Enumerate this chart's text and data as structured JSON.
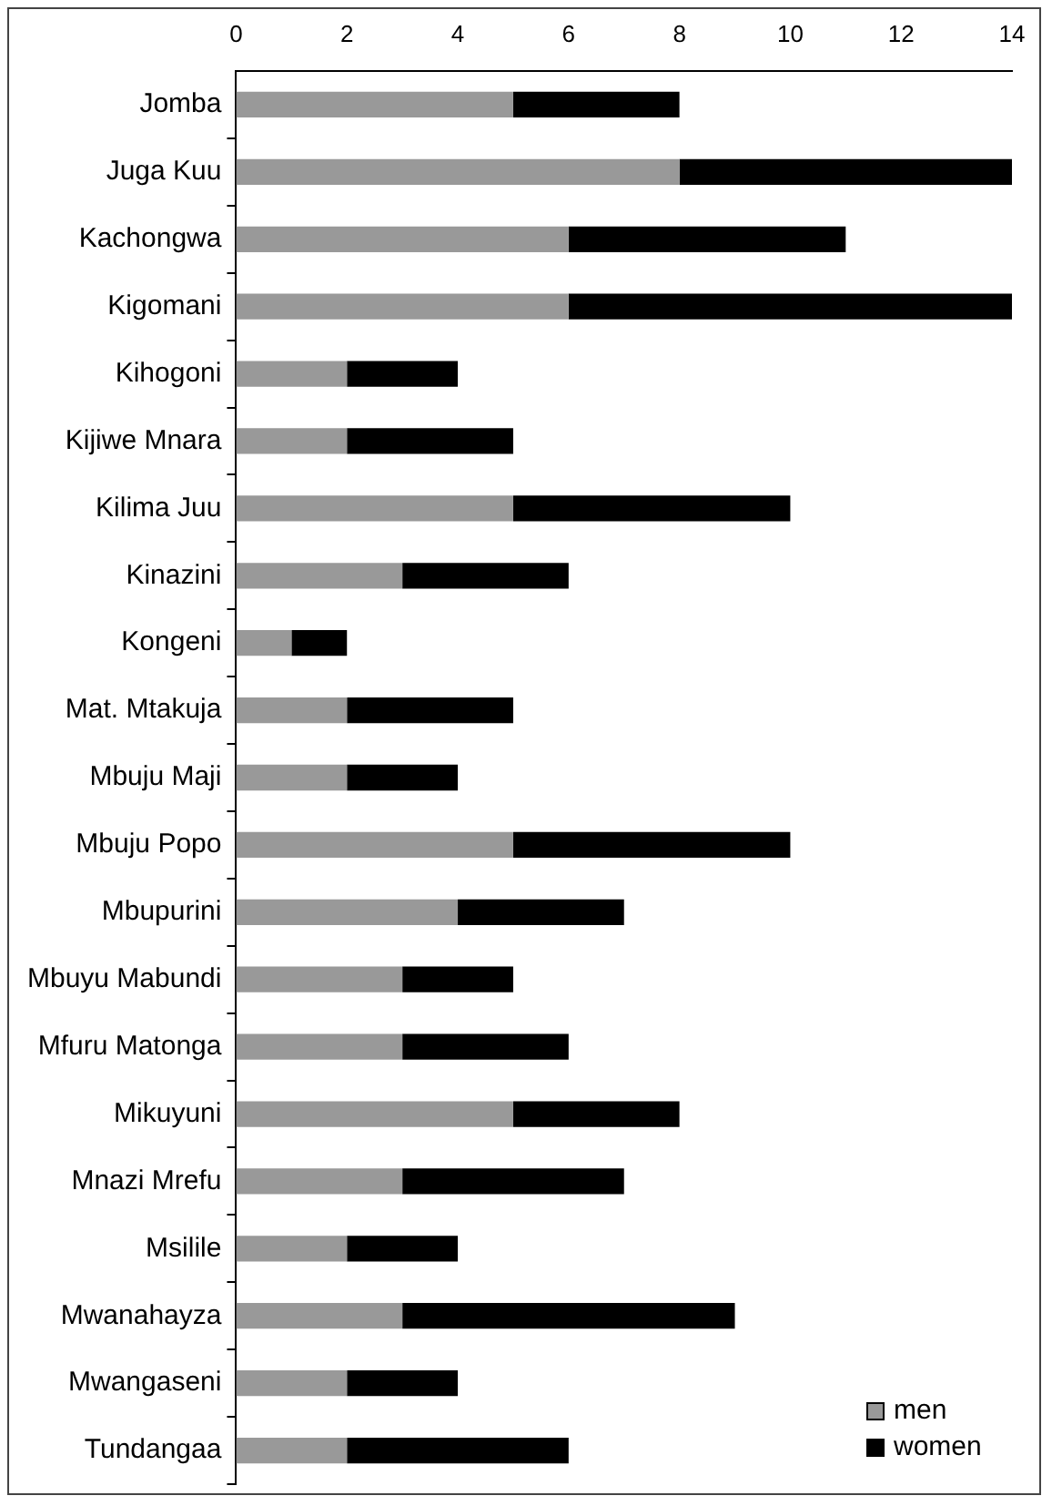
{
  "chart_data": {
    "type": "bar",
    "orientation": "horizontal",
    "stacked": true,
    "categories": [
      "Jomba",
      "Juga Kuu",
      "Kachongwa",
      "Kigomani",
      "Kihogoni",
      "Kijiwe Mnara",
      "Kilima Juu",
      "Kinazini",
      "Kongeni",
      "Mat. Mtakuja",
      "Mbuju Maji",
      "Mbuju Popo",
      "Mbupurini",
      "Mbuyu Mabundi",
      "Mfuru Matonga",
      "Mikuyuni",
      "Mnazi Mrefu",
      "Msilile",
      "Mwanahayza",
      "Mwangaseni",
      "Tundangaa"
    ],
    "series": [
      {
        "name": "men",
        "color": "#999999",
        "values": [
          5,
          8,
          6,
          6,
          2,
          2,
          5,
          3,
          1,
          2,
          2,
          5,
          4,
          3,
          3,
          5,
          3,
          2,
          3,
          2,
          2
        ]
      },
      {
        "name": "women",
        "color": "#000000",
        "values": [
          3,
          6,
          5,
          8,
          2,
          3,
          5,
          3,
          1,
          3,
          2,
          5,
          3,
          2,
          3,
          3,
          4,
          2,
          6,
          2,
          4
        ]
      }
    ],
    "xlim": [
      0,
      14
    ],
    "xticks": [
      0,
      2,
      4,
      6,
      8,
      10,
      12,
      14
    ],
    "grid": false,
    "legend": "bottom right"
  }
}
